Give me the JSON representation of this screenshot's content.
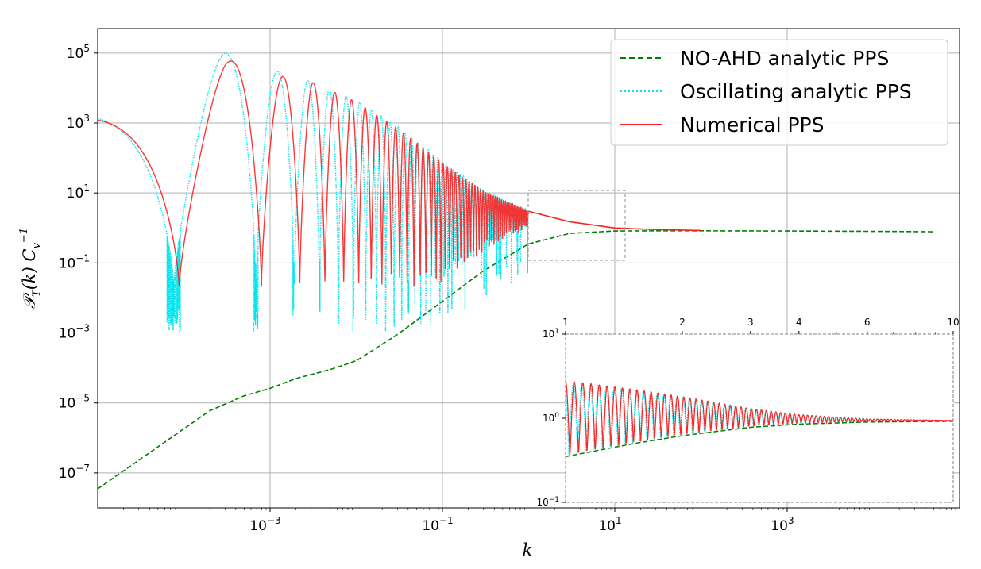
{
  "chart_data": [
    {
      "type": "line",
      "x_scale": "log",
      "y_scale": "log",
      "xlabel": "k",
      "ylabel": "𝒫_T(k)  C_v^{-1}",
      "xlim": [
        1e-05,
        100000
      ],
      "ylim": [
        1e-08,
        500000
      ],
      "x_ticks": [
        {
          "base": "10",
          "exp": "−3",
          "value": 0.001
        },
        {
          "base": "10",
          "exp": "−1",
          "value": 0.1
        },
        {
          "base": "10",
          "exp": "1",
          "value": 10
        },
        {
          "base": "10",
          "exp": "3",
          "value": 1000
        }
      ],
      "y_ticks": [
        {
          "base": "10",
          "exp": "5",
          "value": 100000
        },
        {
          "base": "10",
          "exp": "3",
          "value": 1000
        },
        {
          "base": "10",
          "exp": "1",
          "value": 10
        },
        {
          "base": "10",
          "exp": "−1",
          "value": 0.1
        },
        {
          "base": "10",
          "exp": "−3",
          "value": 0.001
        },
        {
          "base": "10",
          "exp": "−5",
          "value": 1e-05
        },
        {
          "base": "10",
          "exp": "−7",
          "value": 1e-07
        }
      ],
      "grid": true,
      "legend_position": "top-right",
      "series": [
        {
          "name": "NO-AHD analytic PPS",
          "style": "dashed",
          "color": "#008000",
          "x": [
            1e-05,
            0.0002,
            0.0005,
            0.001,
            0.002,
            0.005,
            0.01,
            0.03,
            0.1,
            0.3,
            1,
            3,
            10,
            30,
            100,
            1000,
            10000,
            50000
          ],
          "y": [
            3.5e-08,
            6e-06,
            1.6e-05,
            2.6e-05,
            5e-05,
            9e-05,
            0.00016,
            0.0009,
            0.008,
            0.06,
            0.35,
            0.7,
            0.82,
            0.83,
            0.83,
            0.82,
            0.8,
            0.78
          ]
        },
        {
          "name": "Oscillating analytic PPS",
          "style": "dotted",
          "color": "#00e5ee",
          "envelope_upper": {
            "x": [
              1e-05,
              0.0001,
              0.0003,
              0.0006,
              0.001,
              0.003,
              0.01,
              0.03,
              0.1,
              0.3,
              1,
              3,
              10,
              30,
              100
            ],
            "y": [
              5500,
              40000,
              100000,
              70000,
              35000,
              15000,
              4500,
              800,
              80,
              12,
              3,
              1.5,
              1,
              0.9,
              0.85
            ]
          },
          "minima_depth": [
            0.0005,
            0.006,
            0.004,
            0.03,
            0.05,
            0.3
          ]
        },
        {
          "name": "Numerical PPS",
          "style": "solid",
          "color": "#ff2020",
          "envelope_upper": {
            "x": [
              1e-05,
              0.0001,
              0.0003,
              0.0006,
              0.001,
              0.003,
              0.01,
              0.03,
              0.1,
              0.3,
              1,
              3,
              10,
              30,
              100
            ],
            "y": [
              4000,
              25000,
              60000,
              55000,
              25000,
              15000,
              4000,
              700,
              70,
              11,
              3,
              1.5,
              1,
              0.9,
              0.85
            ]
          },
          "minima_depth": [
            0.3,
            0.4,
            0.03,
            0.02,
            0.003,
            0.01,
            0.3
          ]
        }
      ]
    },
    {
      "type": "line",
      "title": "",
      "x_scale": "log",
      "y_scale": "log",
      "xlim": [
        1,
        10
      ],
      "ylim": [
        0.1,
        10
      ],
      "x_ticks": [
        "1",
        "2",
        "3",
        "4",
        "6",
        "10"
      ],
      "y_ticks": [
        {
          "base": "10",
          "exp": "1",
          "value": 10
        },
        {
          "base": "10",
          "exp": "0",
          "value": 1
        },
        {
          "base": "10",
          "exp": "−1",
          "value": 0.1
        }
      ],
      "series": [
        {
          "name": "NO-AHD analytic PPS",
          "x": [
            1,
            1.5,
            2,
            3,
            4,
            6,
            10
          ],
          "y": [
            0.35,
            0.5,
            0.62,
            0.78,
            0.85,
            0.9,
            0.92
          ]
        },
        {
          "name": "Oscillating analytic PPS",
          "envelope_upper": {
            "x": [
              1,
              1.5,
              2,
              3,
              4,
              6,
              10
            ],
            "y": [
              2.8,
              2.2,
              1.8,
              1.3,
              1.1,
              0.98,
              0.94
            ]
          }
        },
        {
          "name": "Numerical PPS",
          "envelope_upper": {
            "x": [
              1,
              1.5,
              2,
              3,
              4,
              6,
              10
            ],
            "y": [
              2.8,
              2.2,
              1.8,
              1.3,
              1.1,
              0.98,
              0.94
            ]
          }
        }
      ]
    }
  ],
  "legend": {
    "items": [
      {
        "label": "NO-AHD analytic PPS",
        "color": "#008000",
        "style": "dashed"
      },
      {
        "label": "Oscillating analytic PPS",
        "color": "#00e5ee",
        "style": "dotted"
      },
      {
        "label": "Numerical PPS",
        "color": "#ff2020",
        "style": "solid"
      }
    ]
  }
}
